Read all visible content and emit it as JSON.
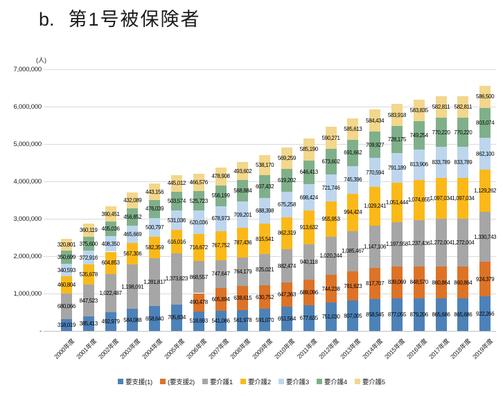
{
  "page": {
    "title_prefix": "b.",
    "title_text": "第1号被保険者"
  },
  "chart": {
    "unit_label": "(人)",
    "y_ticks": [
      "7,000,000",
      "6,000,000",
      "5,000,000",
      "4,000,000",
      "3,000,000",
      "2,000,000",
      "1,000,000",
      "-"
    ],
    "grid_color": "#d9d9d9",
    "axis_color": "#bfbfbf",
    "label_color": "#000000"
  },
  "chart_data": {
    "type": "bar",
    "stacked": true,
    "title": "b. 第1号被保険者",
    "ylabel": "(人)",
    "ylim": [
      0,
      7000000
    ],
    "grid": true,
    "legend_position": "bottom",
    "categories": [
      "2000年度",
      "2001年度",
      "2002年度",
      "2003年度",
      "2004年度",
      "2005年度",
      "2006年度",
      "2007年度",
      "2008年度",
      "2009年度",
      "2010年度",
      "2011年度",
      "2012年度",
      "2013年度",
      "2014年度",
      "2015年度",
      "2016年度",
      "2017年度",
      "2018年度",
      "2019年度"
    ],
    "series": [
      {
        "name": "要支援(1)",
        "color": "#4d82b8",
        "values": [
          318019,
          385413,
          492979,
          584088,
          658640,
          705834,
          518693,
          541086,
          561978,
          591070,
          651564,
          677635,
          751030,
          807005,
          858545,
          877055,
          879206,
          865686,
          865686,
          922266
        ]
      },
      {
        "name": "(要支援2)",
        "color": "#dd7327",
        "values": [
          null,
          null,
          null,
          null,
          null,
          null,
          490478,
          605894,
          638615,
          630752,
          647363,
          688096,
          744238,
          781623,
          817707,
          839069,
          848570,
          860864,
          860864,
          924379
        ]
      },
      {
        "name": "要介護1",
        "color": "#a6a6a6",
        "values": [
          680066,
          847523,
          1022487,
          1198091,
          1281817,
          1373823,
          868557,
          747647,
          764179,
          825021,
          882474,
          940118,
          1020244,
          1085467,
          1147106,
          1197558,
          1237436,
          1272004,
          1272004,
          1330743
        ]
      },
      {
        "name": "要介護2",
        "color": "#fbb919",
        "values": [
          460804,
          535678,
          604853,
          567306,
          582359,
          616016,
          716672,
          767752,
          787436,
          815541,
          862319,
          913632,
          955953,
          994424,
          1029241,
          1051444,
          1074655,
          1097034,
          1097034,
          1129262
        ]
      },
      {
        "name": "要介護3",
        "color": "#bdd6ee",
        "values": [
          340593,
          372916,
          408350,
          465669,
          500797,
          531036,
          620036,
          678973,
          709201,
          688398,
          675258,
          698424,
          721746,
          745396,
          770594,
          791189,
          813906,
          833789,
          833789,
          862100
        ]
      },
      {
        "name": "要介護4",
        "color": "#7fb08a",
        "values": [
          350699,
          375600,
          405036,
          456852,
          476039,
          503574,
          525723,
          556199,
          568884,
          607432,
          619202,
          646413,
          673602,
          691662,
          709927,
          728175,
          749254,
          770220,
          770220,
          803074
        ]
      },
      {
        "name": "要介護5",
        "color": "#f2d78c",
        "values": [
          320801,
          360119,
          390451,
          432089,
          443156,
          445012,
          466576,
          478908,
          493602,
          538170,
          569259,
          585190,
          590271,
          585613,
          584434,
          583918,
          583835,
          582811,
          582811,
          586500
        ]
      }
    ]
  }
}
